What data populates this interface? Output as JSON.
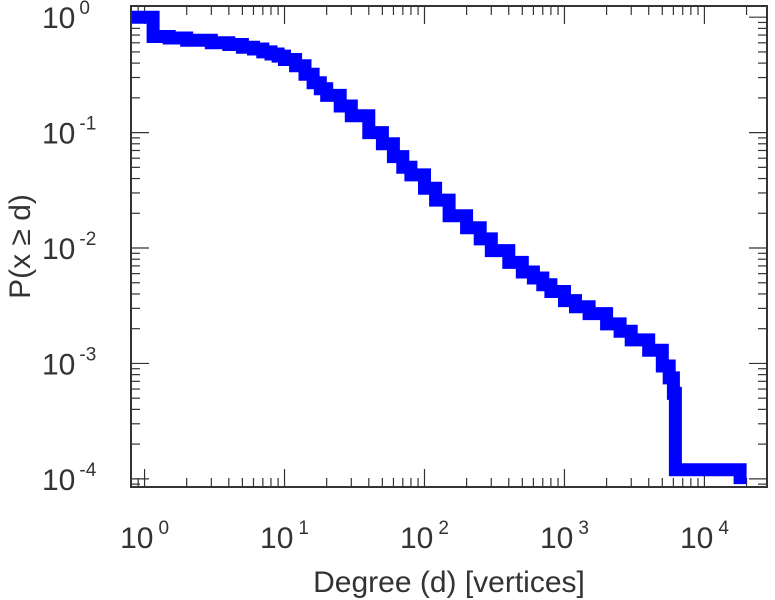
{
  "chart_data": {
    "type": "line",
    "step": true,
    "title": "",
    "xlabel": "Degree (d) [vertices]",
    "ylabel": "P(x ≥ d)",
    "xscale": "log",
    "yscale": "log",
    "xlim": [
      0.8,
      28000
    ],
    "ylim": [
      8.5e-05,
      1.25
    ],
    "grid": false,
    "line_color": "#0000ff",
    "frame_color": "#333333",
    "x_ticks": [
      {
        "value": 1,
        "base": "10",
        "exp": "0"
      },
      {
        "value": 10,
        "base": "10",
        "exp": "1"
      },
      {
        "value": 100,
        "base": "10",
        "exp": "2"
      },
      {
        "value": 1000,
        "base": "10",
        "exp": "3"
      },
      {
        "value": 10000,
        "base": "10",
        "exp": "4"
      }
    ],
    "y_ticks": [
      {
        "value": 1,
        "base": "10",
        "exp": "0"
      },
      {
        "value": 0.1,
        "base": "10",
        "exp": "-1"
      },
      {
        "value": 0.01,
        "base": "10",
        "exp": "-2"
      },
      {
        "value": 0.001,
        "base": "10",
        "exp": "-3"
      },
      {
        "value": 0.0001,
        "base": "10",
        "exp": "-4"
      }
    ],
    "series": [
      {
        "x": [
          0.8,
          1.15,
          1.15,
          1.5,
          2,
          3,
          4,
          5,
          6,
          7,
          8,
          9,
          10,
          12,
          14,
          16,
          18,
          20,
          25,
          30,
          40,
          50,
          60,
          70,
          80,
          100,
          120,
          150,
          200,
          250,
          300,
          400,
          500,
          600,
          700,
          800,
          1000,
          1200,
          1500,
          2000,
          2500,
          3000,
          4000,
          5000,
          5600,
          6000,
          6200,
          6200,
          7000,
          10000,
          14000,
          17000,
          18000
        ],
        "y": [
          1.0,
          1.0,
          0.68,
          0.66,
          0.63,
          0.6,
          0.58,
          0.55,
          0.53,
          0.5,
          0.48,
          0.46,
          0.43,
          0.38,
          0.32,
          0.27,
          0.24,
          0.21,
          0.17,
          0.14,
          0.1,
          0.08,
          0.062,
          0.05,
          0.043,
          0.033,
          0.026,
          0.019,
          0.015,
          0.012,
          0.0095,
          0.0075,
          0.0062,
          0.0055,
          0.0048,
          0.0042,
          0.0035,
          0.0031,
          0.0027,
          0.0022,
          0.0019,
          0.0016,
          0.0013,
          0.00095,
          0.00075,
          0.00055,
          0.00035,
          0.00012,
          0.00012,
          0.00012,
          0.00012,
          0.00012,
          9e-05
        ]
      }
    ]
  }
}
